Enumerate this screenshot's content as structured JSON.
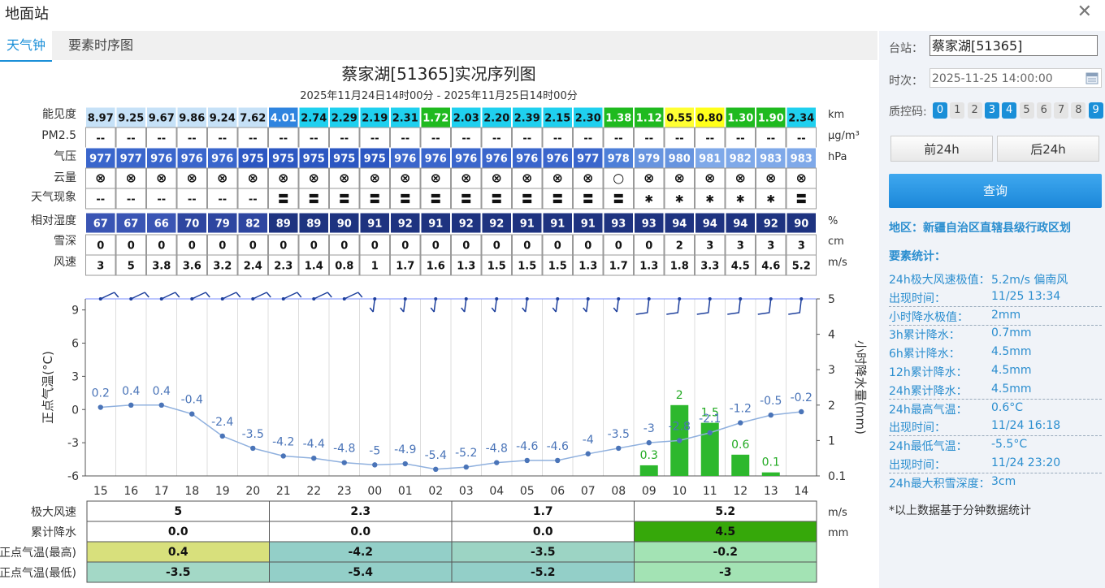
{
  "window": {
    "title": "地面站"
  },
  "tabs": [
    {
      "label": "天气钟"
    },
    {
      "label": "要素时序图"
    }
  ],
  "chart_title": "蔡家湖[51365]实况序列图",
  "chart_subtitle": "2025年11月24日14时00分 - 2025年11月25日14时00分",
  "rows": {
    "visibility": {
      "label": "能见度",
      "unit": "km",
      "values": [
        "8.97",
        "9.25",
        "9.67",
        "9.86",
        "9.24",
        "7.62",
        "4.01",
        "2.74",
        "2.29",
        "2.19",
        "2.31",
        "1.72",
        "2.03",
        "2.20",
        "2.39",
        "2.15",
        "2.30",
        "1.38",
        "1.12",
        "0.55",
        "0.80",
        "1.30",
        "1.90",
        "2.34"
      ]
    },
    "pm25": {
      "label": "PM2.5",
      "unit": "μg/m³",
      "values": [
        "--",
        "--",
        "--",
        "--",
        "--",
        "--",
        "--",
        "--",
        "--",
        "--",
        "--",
        "--",
        "--",
        "--",
        "--",
        "--",
        "--",
        "--",
        "--",
        "--",
        "--",
        "--",
        "--",
        "--"
      ]
    },
    "pressure": {
      "label": "气压",
      "unit": "hPa",
      "values": [
        "977",
        "977",
        "976",
        "976",
        "976",
        "975",
        "975",
        "975",
        "975",
        "975",
        "976",
        "976",
        "976",
        "976",
        "976",
        "976",
        "977",
        "978",
        "979",
        "980",
        "981",
        "982",
        "983",
        "983"
      ]
    },
    "cloud": {
      "label": "云量",
      "values": [
        "⊗",
        "⊗",
        "⊗",
        "⊗",
        "⊗",
        "⊗",
        "⊗",
        "⊗",
        "⊗",
        "⊗",
        "⊗",
        "⊗",
        "⊗",
        "⊗",
        "⊗",
        "⊗",
        "⊗",
        "○",
        "⊗",
        "⊗",
        "⊗",
        "⊗",
        "⊗",
        "⊗"
      ]
    },
    "weather": {
      "label": "天气现象",
      "values": [
        "--",
        "--",
        "--",
        "--",
        "--",
        "--",
        "〓",
        "〓",
        "〓",
        "〓",
        "〓",
        "〓",
        "〓",
        "〓",
        "〓",
        "〓",
        "〓",
        "〓",
        "✱",
        "✱",
        "✱",
        "✱",
        "✱",
        "〓"
      ]
    },
    "humidity": {
      "label": "相对湿度",
      "unit": "%",
      "values": [
        "67",
        "67",
        "66",
        "70",
        "79",
        "82",
        "89",
        "89",
        "90",
        "91",
        "92",
        "91",
        "92",
        "92",
        "91",
        "91",
        "91",
        "93",
        "93",
        "94",
        "94",
        "94",
        "92",
        "90"
      ]
    },
    "snow": {
      "label": "雪深",
      "unit": "cm",
      "values": [
        "0",
        "0",
        "0",
        "0",
        "0",
        "0",
        "0",
        "0",
        "0",
        "0",
        "0",
        "0",
        "0",
        "0",
        "0",
        "0",
        "0",
        "0",
        "0",
        "2",
        "3",
        "3",
        "3",
        "3"
      ]
    },
    "wind": {
      "label": "风速",
      "unit": "m/s",
      "values": [
        "3",
        "5",
        "3.8",
        "3.6",
        "3.2",
        "2.4",
        "2.3",
        "1.4",
        "0.8",
        "1",
        "1.7",
        "1.6",
        "1.3",
        "1.5",
        "1.5",
        "1.5",
        "1.3",
        "1.7",
        "1.3",
        "1.8",
        "3.3",
        "4.5",
        "4.6",
        "5.2"
      ]
    }
  },
  "chart_data": {
    "type": "line",
    "categories": [
      "15",
      "16",
      "17",
      "18",
      "19",
      "20",
      "21",
      "22",
      "23",
      "00",
      "01",
      "02",
      "03",
      "04",
      "05",
      "06",
      "07",
      "08",
      "09",
      "10",
      "11",
      "12",
      "13",
      "14"
    ],
    "series": [
      {
        "values": [
          0.2,
          0.4,
          0.4,
          -0.4,
          -2.4,
          -3.5,
          -4.2,
          -4.4,
          -4.8,
          -5,
          -4.9,
          -5.4,
          -5.2,
          -4.8,
          -4.6,
          -4.6,
          -4,
          -3.5,
          -3,
          -2.8,
          -2.1,
          -1.2,
          -0.5,
          -0.2
        ]
      },
      {
        "values": [
          null,
          null,
          null,
          null,
          null,
          null,
          null,
          null,
          null,
          null,
          null,
          null,
          null,
          null,
          null,
          null,
          null,
          null,
          0.3,
          2,
          1.5,
          0.6,
          0.1,
          null
        ]
      }
    ],
    "ylabel": "正点气温(°C)",
    "ylabel2": "小时降水量(mm)",
    "yticks": [
      "9",
      "6",
      "3",
      "0",
      "-3",
      "-6"
    ],
    "yticks2": [
      "5",
      "4",
      "3",
      "2",
      "1",
      "0.1"
    ],
    "ylim": [
      -6,
      10
    ],
    "y2lim": [
      0,
      5
    ]
  },
  "summary": {
    "headers": {
      "max_wind": "极大风速",
      "precip": "累计降水",
      "tmax": "正点气温(最高)",
      "tmin": "正点气温(最低)"
    },
    "units": {
      "wind": "m/s",
      "precip": "mm"
    },
    "max_wind": [
      "5",
      "2.3",
      "1.7",
      "5.2"
    ],
    "precip": [
      "0.0",
      "0.0",
      "0.0",
      "4.5"
    ],
    "tmax": [
      "0.4",
      "-4.2",
      "-3.5",
      "-0.2"
    ],
    "tmin": [
      "-3.5",
      "-5.4",
      "-5.2",
      "-3"
    ]
  },
  "panel": {
    "station_label": "台站：",
    "station_value": "蔡家湖[51365]",
    "time_label": "时次：",
    "time_value": "2025-11-25 14:00:00",
    "qc_label": "质控码:",
    "qc_codes": [
      "0",
      "1",
      "2",
      "3",
      "4",
      "5",
      "6",
      "7",
      "8",
      "9"
    ],
    "qc_selected": [
      "0",
      "3",
      "4",
      "9"
    ],
    "prev_button": "前24h",
    "next_button": "后24h",
    "query_button": "查询",
    "region": "地区：新疆自治区直辖县级行政区划",
    "stats_heading": "要素统计：",
    "stats": [
      {
        "k": "24h极大风速极值：",
        "v": "5.2m/s 偏南风"
      },
      {
        "k": "出现时间：",
        "v": "11/25 13:34"
      },
      {
        "k": "小时降水极值：",
        "v": "2mm"
      },
      {
        "k": "3h累计降水：",
        "v": "0.7mm"
      },
      {
        "k": "6h累计降水：",
        "v": "4.5mm"
      },
      {
        "k": "12h累计降水：",
        "v": "4.5mm"
      },
      {
        "k": "24h累计降水：",
        "v": "4.5mm"
      },
      {
        "k": "24h最高气温：",
        "v": "0.6°C"
      },
      {
        "k": "出现时间：",
        "v": "11/24 16:18"
      },
      {
        "k": "24h最低气温：",
        "v": "-5.5°C"
      },
      {
        "k": "出现时间：",
        "v": "11/24 23:20"
      },
      {
        "k": "24h最大积雪深度：",
        "v": "3cm"
      }
    ],
    "note": "*以上数据基于分钟数据统计"
  },
  "colors": {
    "accent": "#1a8fd8",
    "temp_line": "#5b87c5",
    "precip_bar": "#2db82d"
  }
}
